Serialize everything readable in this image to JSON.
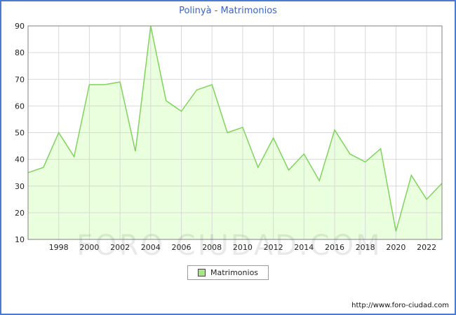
{
  "title": "Polinyà - Matrimonios",
  "legend": {
    "label": "Matrimonios"
  },
  "watermark": "FORO CIUDAD.COM",
  "footer": {
    "url": "http://www.foro-ciudad.com"
  },
  "colors": {
    "border": "#4a7ad4",
    "title": "#3b62c8",
    "line": "#7fd45c",
    "fill": "#eaffde",
    "grid": "#d9d9d9",
    "plot_border": "#808080",
    "swatch": "#a8e882"
  },
  "chart_data": {
    "type": "area",
    "title": "Polinyà - Matrimonios",
    "xlabel": "",
    "ylabel": "",
    "legend_position": "bottom",
    "grid": true,
    "x": [
      1996,
      1997,
      1998,
      1999,
      2000,
      2001,
      2002,
      2003,
      2004,
      2005,
      2006,
      2007,
      2008,
      2009,
      2010,
      2011,
      2012,
      2013,
      2014,
      2015,
      2016,
      2017,
      2018,
      2019,
      2020,
      2021,
      2022,
      2023
    ],
    "values": [
      35,
      37,
      50,
      41,
      68,
      68,
      69,
      43,
      90,
      62,
      58,
      66,
      68,
      50,
      52,
      37,
      48,
      36,
      42,
      32,
      51,
      42,
      39,
      44,
      13,
      34,
      25,
      31
    ],
    "series_name": "Matrimonios",
    "ylim": [
      10,
      90
    ],
    "yticks": [
      10,
      20,
      30,
      40,
      50,
      60,
      70,
      80,
      90
    ],
    "xticks": [
      1998,
      2000,
      2002,
      2004,
      2006,
      2008,
      2010,
      2012,
      2014,
      2016,
      2018,
      2020,
      2022
    ]
  }
}
